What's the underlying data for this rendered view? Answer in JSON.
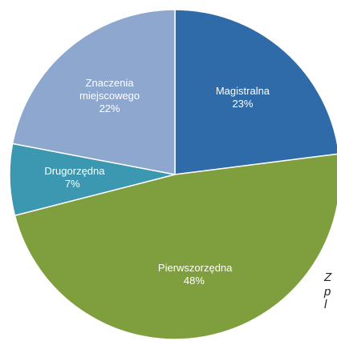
{
  "chart_data": {
    "type": "pie",
    "categories": [
      "Magistralna",
      "Pierwszorzędna",
      "Drugorzędna",
      "Znaczenia miejscowego"
    ],
    "values": [
      23,
      48,
      7,
      22
    ],
    "value_labels": [
      "23%",
      "48%",
      "7%",
      "22%"
    ],
    "colors": [
      "#2f6aa9",
      "#7f9e3d",
      "#3b98b0",
      "#8ea7cf"
    ],
    "start_angle": -90
  },
  "side_text": [
    "Z",
    "p",
    "l"
  ]
}
